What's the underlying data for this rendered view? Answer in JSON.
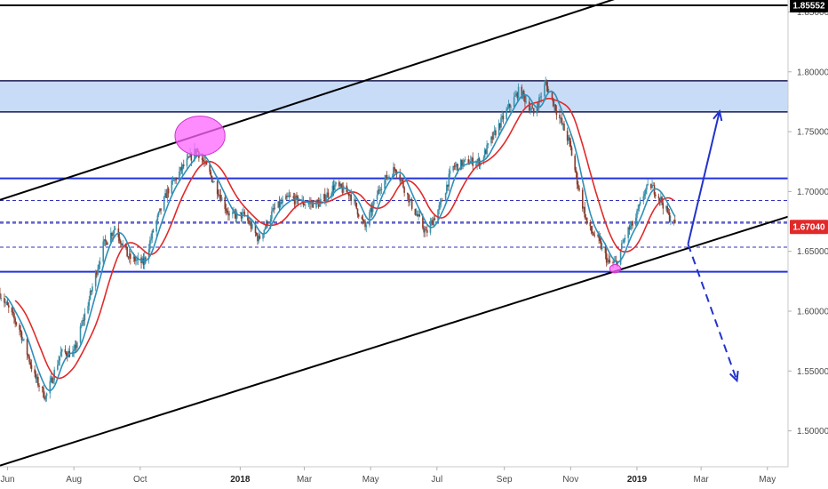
{
  "chart_data": {
    "type": "candlestick",
    "y_axis": {
      "scale": "linear",
      "range": [
        1.47,
        1.86
      ],
      "ticks": [
        "1.85000",
        "1.80000",
        "1.75000",
        "1.70000",
        "1.65000",
        "1.60000",
        "1.55000",
        "1.50000"
      ],
      "tick_values": [
        1.85,
        1.8,
        1.75,
        1.7,
        1.65,
        1.6,
        1.55,
        1.5
      ]
    },
    "x_axis": {
      "start": "2017-05-25",
      "end": "2019-05-20",
      "ticks": [
        {
          "label": "Jun",
          "date": "2017-06-01",
          "bold": false
        },
        {
          "label": "Aug",
          "date": "2017-08-01",
          "bold": false
        },
        {
          "label": "Oct",
          "date": "2017-10-01",
          "bold": false
        },
        {
          "label": "2018",
          "date": "2018-01-01",
          "bold": true
        },
        {
          "label": "Mar",
          "date": "2018-03-01",
          "bold": false
        },
        {
          "label": "May",
          "date": "2018-05-01",
          "bold": false
        },
        {
          "label": "Jul",
          "date": "2018-07-01",
          "bold": false
        },
        {
          "label": "Sep",
          "date": "2018-09-01",
          "bold": false
        },
        {
          "label": "Nov",
          "date": "2018-11-01",
          "bold": false
        },
        {
          "label": "2019",
          "date": "2019-01-01",
          "bold": true
        },
        {
          "label": "Mar",
          "date": "2019-03-01",
          "bold": false
        },
        {
          "label": "May",
          "date": "2019-05-01",
          "bold": false
        }
      ]
    },
    "price_path": [
      [
        "2017-05-25",
        1.615
      ],
      [
        "2017-06-12",
        1.585
      ],
      [
        "2017-06-26",
        1.545
      ],
      [
        "2017-07-06",
        1.528
      ],
      [
        "2017-07-20",
        1.565
      ],
      [
        "2017-08-01",
        1.565
      ],
      [
        "2017-08-15",
        1.61
      ],
      [
        "2017-08-28",
        1.655
      ],
      [
        "2017-09-08",
        1.67
      ],
      [
        "2017-09-20",
        1.645
      ],
      [
        "2017-10-04",
        1.64
      ],
      [
        "2017-10-14",
        1.67
      ],
      [
        "2017-10-26",
        1.7
      ],
      [
        "2017-11-09",
        1.72
      ],
      [
        "2017-11-22",
        1.735
      ],
      [
        "2017-12-01",
        1.72
      ],
      [
        "2017-12-12",
        1.7
      ],
      [
        "2017-12-22",
        1.68
      ],
      [
        "2018-01-05",
        1.68
      ],
      [
        "2018-01-18",
        1.66
      ],
      [
        "2018-02-01",
        1.685
      ],
      [
        "2018-02-15",
        1.695
      ],
      [
        "2018-03-01",
        1.69
      ],
      [
        "2018-03-15",
        1.69
      ],
      [
        "2018-03-29",
        1.705
      ],
      [
        "2018-04-12",
        1.698
      ],
      [
        "2018-04-26",
        1.67
      ],
      [
        "2018-05-10",
        1.705
      ],
      [
        "2018-05-24",
        1.72
      ],
      [
        "2018-06-07",
        1.69
      ],
      [
        "2018-06-21",
        1.665
      ],
      [
        "2018-07-05",
        1.69
      ],
      [
        "2018-07-15",
        1.72
      ],
      [
        "2018-07-30",
        1.725
      ],
      [
        "2018-08-10",
        1.725
      ],
      [
        "2018-08-24",
        1.75
      ],
      [
        "2018-09-05",
        1.77
      ],
      [
        "2018-09-15",
        1.785
      ],
      [
        "2018-09-28",
        1.765
      ],
      [
        "2018-10-09",
        1.79
      ],
      [
        "2018-10-18",
        1.77
      ],
      [
        "2018-10-31",
        1.74
      ],
      [
        "2018-11-09",
        1.7
      ],
      [
        "2018-11-17",
        1.67
      ],
      [
        "2018-11-26",
        1.66
      ],
      [
        "2018-12-06",
        1.64
      ],
      [
        "2018-12-13",
        1.64
      ],
      [
        "2018-12-22",
        1.665
      ],
      [
        "2018-12-30",
        1.675
      ],
      [
        "2019-01-08",
        1.7
      ],
      [
        "2019-01-14",
        1.705
      ],
      [
        "2019-01-22",
        1.695
      ],
      [
        "2019-01-30",
        1.68
      ],
      [
        "2019-02-05",
        1.672
      ]
    ],
    "moving_averages": [
      {
        "color": "#e02a2a",
        "lag_days": 14
      },
      {
        "color": "#2e8fb8",
        "lag_days": 5
      }
    ],
    "current_price": {
      "label": "1.67040",
      "value": 1.6704,
      "color": "#1d1d6e"
    },
    "last_price_badge": {
      "label": "1.85552",
      "value": 1.85552
    },
    "top_line": {
      "value": 1.85552,
      "color": "#000000"
    },
    "horizontal_levels": [
      {
        "value": 1.711,
        "style": "solid",
        "color": "#2233dd"
      },
      {
        "value": 1.633,
        "style": "solid",
        "color": "#2233dd"
      },
      {
        "value": 1.6925,
        "style": "dashed",
        "color": "#3333bb"
      },
      {
        "value": 1.6745,
        "style": "dashed",
        "color": "#3333bb"
      },
      {
        "value": 1.6735,
        "style": "dashed",
        "color": "#3333bb"
      },
      {
        "value": 1.6535,
        "style": "dashed",
        "color": "#3333bb"
      }
    ],
    "resistance_zone": {
      "y_top": 1.7925,
      "y_bottom": 1.7665,
      "fill": "#c9dcf7",
      "border": "#1a1a55"
    },
    "channel_lines": [
      {
        "points": [
          [
            "2017-05-25",
            1.693
          ],
          [
            "2018-12-19",
            1.863
          ]
        ],
        "color": "#000000"
      },
      {
        "points": [
          [
            "2017-05-25",
            1.471
          ],
          [
            "2019-05-20",
            1.679
          ]
        ],
        "color": "#000000"
      }
    ],
    "scenario_arrows": [
      {
        "from": [
          "2019-02-17",
          1.656
        ],
        "to": [
          "2019-03-18",
          1.767
        ],
        "style": "solid",
        "color": "#2233cc"
      },
      {
        "from": [
          "2019-02-17",
          1.656
        ],
        "to": [
          "2019-04-03",
          1.542
        ],
        "style": "dashed",
        "color": "#2233cc"
      }
    ],
    "highlight_markers": [
      {
        "center": [
          "2017-11-25",
          1.7465
        ],
        "radius_days": 23,
        "radius_price": 0.0165,
        "color": "#ff66ff"
      },
      {
        "center": [
          "2018-12-12",
          1.6355
        ],
        "radius_days": 5,
        "radius_price": 0.0035,
        "color": "#ff66ff"
      }
    ],
    "grid": false,
    "legend": "none",
    "colors": {
      "up_candle": "#3a8fa8",
      "down_candle": "#8b3a2a",
      "axis_text": "#4a4a4a"
    }
  }
}
